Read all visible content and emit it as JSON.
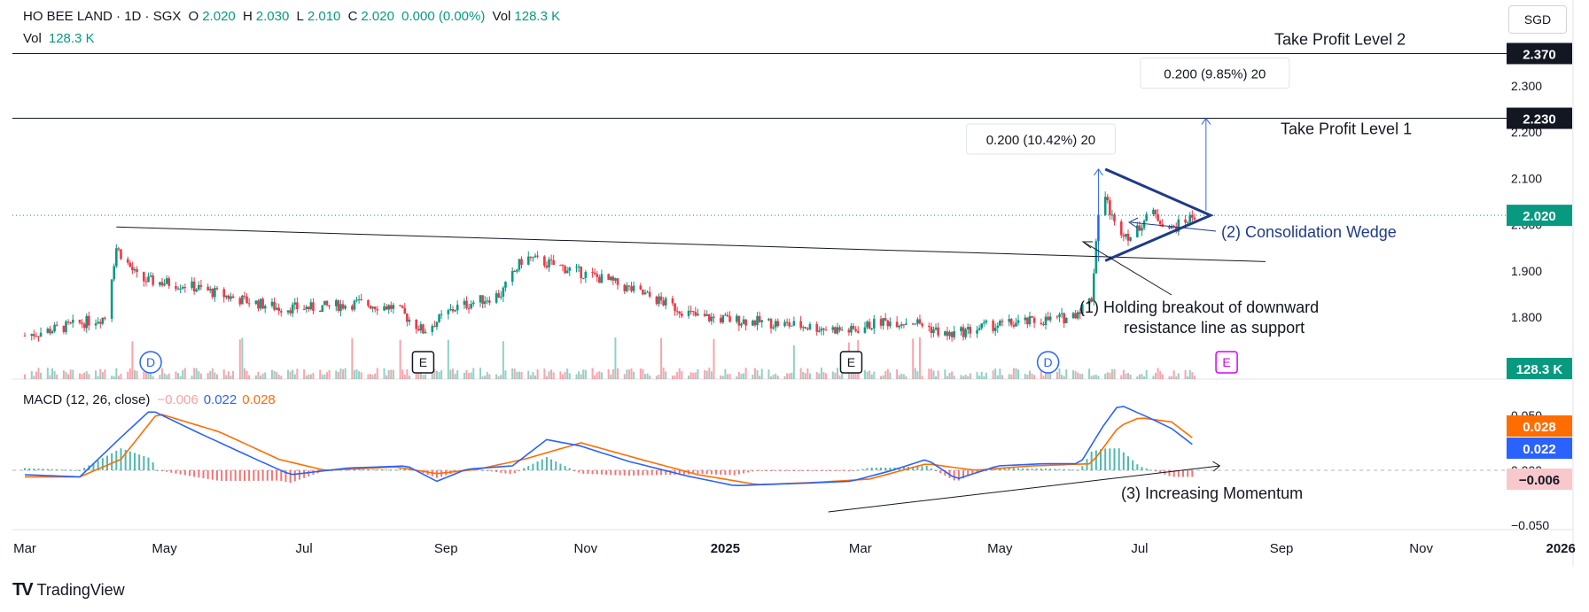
{
  "header": {
    "title": "HO BEE LAND · 1D · SGX",
    "open_label": "O",
    "open": "2.020",
    "high_label": "H",
    "high": "2.030",
    "low_label": "L",
    "low": "2.010",
    "close_label": "C",
    "close": "2.020",
    "change": "0.000 (0.00%)",
    "vol_label": "Vol",
    "vol": "128.3 K",
    "vol2_label": "Vol",
    "vol2": "128.3 K"
  },
  "currency": "SGD",
  "macd_header": {
    "label": "MACD (12, 26, close)",
    "hist": "−0.006",
    "macd": "0.022",
    "signal": "0.028"
  },
  "brand": "TradingView",
  "colors": {
    "up": "#089981",
    "down": "#f23645",
    "macd": "#2962ff",
    "signal": "#ff6d00",
    "hist_up": "#26a69a",
    "hist_down": "#ef5350",
    "annotation": "#1e3a8a"
  },
  "chart_data": [
    {
      "type": "candlestick",
      "title": "HO BEE LAND · 1D · SGX",
      "x_ticks": [
        "Mar",
        "May",
        "Jul",
        "Sep",
        "Nov",
        "2025",
        "Mar",
        "May",
        "Jul",
        "Sep",
        "Nov",
        "2026"
      ],
      "y_ticks": [
        "1.800",
        "1.900",
        "2.000",
        "2.100",
        "2.200",
        "2.300"
      ],
      "ylim": [
        1.68,
        2.42
      ],
      "price_tags": [
        "2.370",
        "2.230",
        "2.020"
      ],
      "volume_tag": "128.3 K",
      "close_path": [
        {
          "x": "2024-03-01",
          "y": 1.76
        },
        {
          "x": "2024-03-20",
          "y": 1.78
        },
        {
          "x": "2024-04-05",
          "y": 1.8
        },
        {
          "x": "2024-04-10",
          "y": 1.95
        },
        {
          "x": "2024-04-20",
          "y": 1.88
        },
        {
          "x": "2024-05-10",
          "y": 1.87
        },
        {
          "x": "2024-06-01",
          "y": 1.84
        },
        {
          "x": "2024-06-20",
          "y": 1.82
        },
        {
          "x": "2024-07-05",
          "y": 1.82
        },
        {
          "x": "2024-07-25",
          "y": 1.83
        },
        {
          "x": "2024-08-10",
          "y": 1.82
        },
        {
          "x": "2024-08-22",
          "y": 1.77
        },
        {
          "x": "2024-09-05",
          "y": 1.82
        },
        {
          "x": "2024-09-25",
          "y": 1.85
        },
        {
          "x": "2024-10-05",
          "y": 1.93
        },
        {
          "x": "2024-10-20",
          "y": 1.91
        },
        {
          "x": "2024-11-10",
          "y": 1.88
        },
        {
          "x": "2024-12-01",
          "y": 1.84
        },
        {
          "x": "2024-12-20",
          "y": 1.8
        },
        {
          "x": "2025-01-15",
          "y": 1.79
        },
        {
          "x": "2025-02-05",
          "y": 1.78
        },
        {
          "x": "2025-02-25",
          "y": 1.77
        },
        {
          "x": "2025-03-10",
          "y": 1.79
        },
        {
          "x": "2025-03-25",
          "y": 1.79
        },
        {
          "x": "2025-04-08",
          "y": 1.76
        },
        {
          "x": "2025-04-25",
          "y": 1.78
        },
        {
          "x": "2025-05-15",
          "y": 1.79
        },
        {
          "x": "2025-06-01",
          "y": 1.8
        },
        {
          "x": "2025-06-10",
          "y": 1.84
        },
        {
          "x": "2025-06-14",
          "y": 2.09
        },
        {
          "x": "2025-06-20",
          "y": 2.0
        },
        {
          "x": "2025-06-28",
          "y": 1.97
        },
        {
          "x": "2025-07-05",
          "y": 2.03
        },
        {
          "x": "2025-07-15",
          "y": 1.99
        },
        {
          "x": "2025-07-25",
          "y": 2.02
        }
      ],
      "horizontal_lines": [
        {
          "label": "Take Profit Level 2",
          "y": 2.37
        },
        {
          "label": "Take Profit Level 1",
          "y": 2.23
        }
      ],
      "measurements": [
        {
          "label": "0.200 (10.42%) 20",
          "from": 1.92,
          "to": 2.12
        },
        {
          "label": "0.200 (9.85%) 20",
          "from": 2.03,
          "to": 2.23
        }
      ],
      "annotations": [
        "(2) Consolidation Wedge",
        "(1) Holding breakout of downward",
        "resistance line as support"
      ],
      "event_markers": [
        "D",
        "E",
        "E",
        "D",
        "E"
      ]
    },
    {
      "type": "line",
      "title": "MACD (12, 26, close)",
      "y_ticks": [
        "0.050",
        "0.000",
        "−0.050"
      ],
      "value_tags": [
        "0.028",
        "0.022",
        "−0.006"
      ],
      "series": [
        {
          "name": "MACD",
          "values": [
            {
              "x": "2024-03-01",
              "y": -0.004
            },
            {
              "x": "2024-03-25",
              "y": -0.006
            },
            {
              "x": "2024-04-12",
              "y": 0.03
            },
            {
              "x": "2024-04-25",
              "y": 0.055
            },
            {
              "x": "2024-05-15",
              "y": 0.035
            },
            {
              "x": "2024-06-10",
              "y": 0.01
            },
            {
              "x": "2024-06-25",
              "y": -0.004
            },
            {
              "x": "2024-07-20",
              "y": 0.002
            },
            {
              "x": "2024-08-15",
              "y": 0.004
            },
            {
              "x": "2024-08-28",
              "y": -0.01
            },
            {
              "x": "2024-09-10",
              "y": 0.001
            },
            {
              "x": "2024-09-30",
              "y": 0.004
            },
            {
              "x": "2024-10-15",
              "y": 0.028
            },
            {
              "x": "2024-10-30",
              "y": 0.022
            },
            {
              "x": "2024-11-20",
              "y": 0.008
            },
            {
              "x": "2024-12-15",
              "y": -0.005
            },
            {
              "x": "2025-01-05",
              "y": -0.014
            },
            {
              "x": "2025-02-01",
              "y": -0.012
            },
            {
              "x": "2025-02-25",
              "y": -0.01
            },
            {
              "x": "2025-03-15",
              "y": 0.0
            },
            {
              "x": "2025-03-30",
              "y": 0.01
            },
            {
              "x": "2025-04-12",
              "y": -0.008
            },
            {
              "x": "2025-04-30",
              "y": 0.004
            },
            {
              "x": "2025-05-20",
              "y": 0.006
            },
            {
              "x": "2025-06-05",
              "y": 0.006
            },
            {
              "x": "2025-06-15",
              "y": 0.04
            },
            {
              "x": "2025-06-22",
              "y": 0.06
            },
            {
              "x": "2025-07-05",
              "y": 0.048
            },
            {
              "x": "2025-07-15",
              "y": 0.038
            },
            {
              "x": "2025-07-25",
              "y": 0.022
            }
          ]
        },
        {
          "name": "Signal",
          "values": [
            {
              "x": "2024-03-01",
              "y": -0.006
            },
            {
              "x": "2024-03-25",
              "y": -0.006
            },
            {
              "x": "2024-04-12",
              "y": 0.01
            },
            {
              "x": "2024-04-28",
              "y": 0.052
            },
            {
              "x": "2024-05-25",
              "y": 0.035
            },
            {
              "x": "2024-06-20",
              "y": 0.01
            },
            {
              "x": "2024-07-10",
              "y": 0.0
            },
            {
              "x": "2024-08-10",
              "y": 0.003
            },
            {
              "x": "2024-08-28",
              "y": -0.003
            },
            {
              "x": "2024-09-15",
              "y": 0.001
            },
            {
              "x": "2024-10-05",
              "y": 0.01
            },
            {
              "x": "2024-10-30",
              "y": 0.025
            },
            {
              "x": "2024-11-25",
              "y": 0.01
            },
            {
              "x": "2024-12-20",
              "y": -0.004
            },
            {
              "x": "2025-01-15",
              "y": -0.013
            },
            {
              "x": "2025-02-10",
              "y": -0.011
            },
            {
              "x": "2025-03-05",
              "y": -0.008
            },
            {
              "x": "2025-03-30",
              "y": 0.006
            },
            {
              "x": "2025-04-20",
              "y": 0.0
            },
            {
              "x": "2025-05-15",
              "y": 0.004
            },
            {
              "x": "2025-06-10",
              "y": 0.006
            },
            {
              "x": "2025-06-22",
              "y": 0.04
            },
            {
              "x": "2025-07-01",
              "y": 0.048
            },
            {
              "x": "2025-07-15",
              "y": 0.044
            },
            {
              "x": "2025-07-25",
              "y": 0.028
            }
          ]
        }
      ],
      "histogram_last": -0.006,
      "annotations": [
        "(3) Increasing Momentum"
      ]
    }
  ]
}
